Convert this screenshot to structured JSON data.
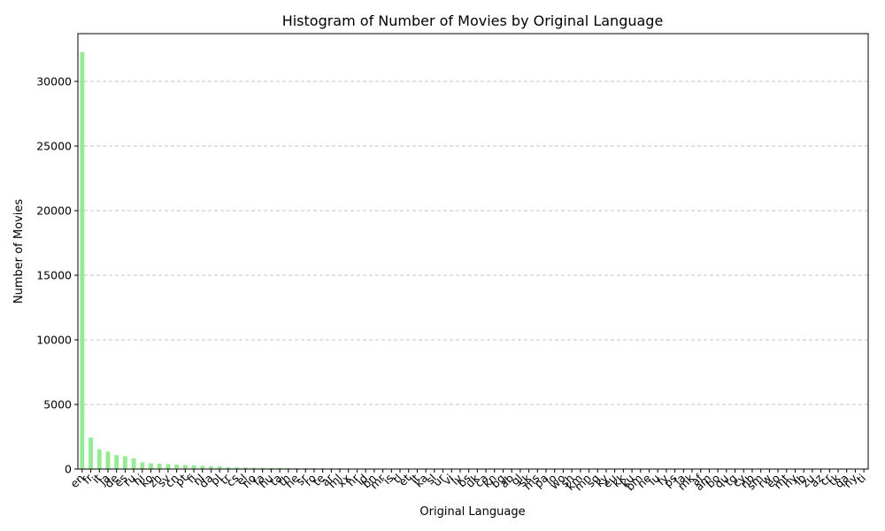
{
  "chart_data": {
    "type": "bar",
    "title": "Histogram of Number of Movies by Original Language",
    "xlabel": "Original Language",
    "ylabel": "Number of Movies",
    "ylim": [
      0,
      33700
    ],
    "yticks": [
      0,
      5000,
      10000,
      15000,
      20000,
      25000,
      30000
    ],
    "grid": "y-axis dashed",
    "categories": [
      "en",
      "fr",
      "it",
      "ja",
      "de",
      "es",
      "ru",
      "hi",
      "ko",
      "zh",
      "sv",
      "cn",
      "pt",
      "fi",
      "nl",
      "da",
      "pl",
      "tr",
      "cs",
      "el",
      "no",
      "fa",
      "hu",
      "ta",
      "th",
      "he",
      "sr",
      "ro",
      "te",
      "ar",
      "ml",
      "xx",
      "hr",
      "id",
      "bn",
      "mr",
      "is",
      "tl",
      "et",
      "lt",
      "ka",
      "sl",
      "ur",
      "vi",
      "lv",
      "bs",
      "uk",
      "ca",
      "kn",
      "bg",
      "ab",
      "gl",
      "sk",
      "ms",
      "pa",
      "lo",
      "wo",
      "sh",
      "km",
      "mn",
      "sq",
      "ky",
      "eu",
      "kk",
      "ku",
      "bm",
      "ne",
      "iu",
      "fy",
      "ps",
      "la",
      "mk",
      "af",
      "am",
      "bo",
      "qu",
      "tg",
      "cy",
      "nb",
      "sm",
      "rw",
      "eo",
      "mt",
      "hy",
      "lb",
      "zu",
      "az",
      "cr",
      "tk",
      "qa",
      "ny",
      "ti"
    ],
    "values": [
      32269,
      2438,
      1529,
      1350,
      1080,
      994,
      826,
      508,
      444,
      409,
      384,
      363,
      316,
      297,
      248,
      225,
      217,
      150,
      130,
      122,
      109,
      90,
      80,
      78,
      76,
      74,
      70,
      61,
      59,
      54,
      50,
      40,
      30,
      25,
      22,
      20,
      18,
      16,
      15,
      14,
      13,
      12,
      11,
      10,
      10,
      9,
      9,
      8,
      8,
      7,
      7,
      6,
      6,
      5,
      5,
      5,
      4,
      4,
      4,
      4,
      3,
      3,
      3,
      3,
      3,
      3,
      2,
      2,
      2,
      2,
      2,
      2,
      2,
      2,
      2,
      1,
      1,
      1,
      1,
      1,
      1,
      1,
      1,
      1,
      1,
      1,
      1,
      1,
      1,
      1,
      1,
      1
    ]
  }
}
